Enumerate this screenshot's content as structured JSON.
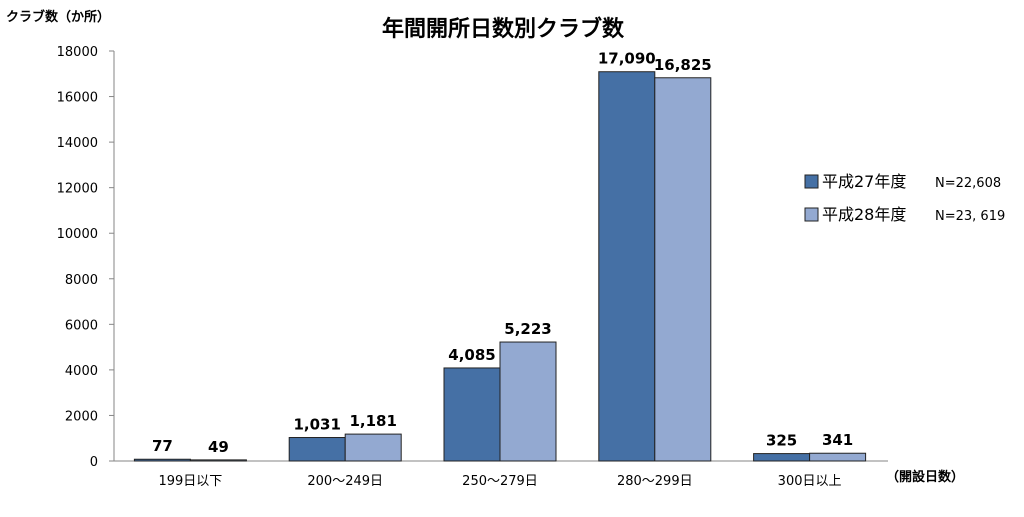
{
  "chart_data": {
    "type": "bar",
    "title": "年間開所日数別クラブ数",
    "ylabel": "クラブ数（か所）",
    "xlabel": "（開設日数）",
    "ylim": [
      0,
      18000
    ],
    "yticks": [
      "0",
      "2000",
      "4000",
      "6000",
      "8000",
      "10000",
      "12000",
      "14000",
      "16000",
      "18000"
    ],
    "categories": [
      "199日以下",
      "200～249日",
      "250～279日",
      "280～299日",
      "300日以上"
    ],
    "series": [
      {
        "name": "平成27年度",
        "note": "N=22,608",
        "color": "#4570a5",
        "values": [
          77,
          1031,
          4085,
          17090,
          325
        ],
        "labels": [
          "77",
          "1,031",
          "4,085",
          "17,090",
          "325"
        ]
      },
      {
        "name": "平成28年度",
        "note": "N=23, 619",
        "color": "#93a9d1",
        "values": [
          49,
          1181,
          5223,
          16825,
          341
        ],
        "labels": [
          "49",
          "1,181",
          "5,223",
          "16,825",
          "341"
        ]
      }
    ],
    "legend_position": "right",
    "grid": false
  }
}
